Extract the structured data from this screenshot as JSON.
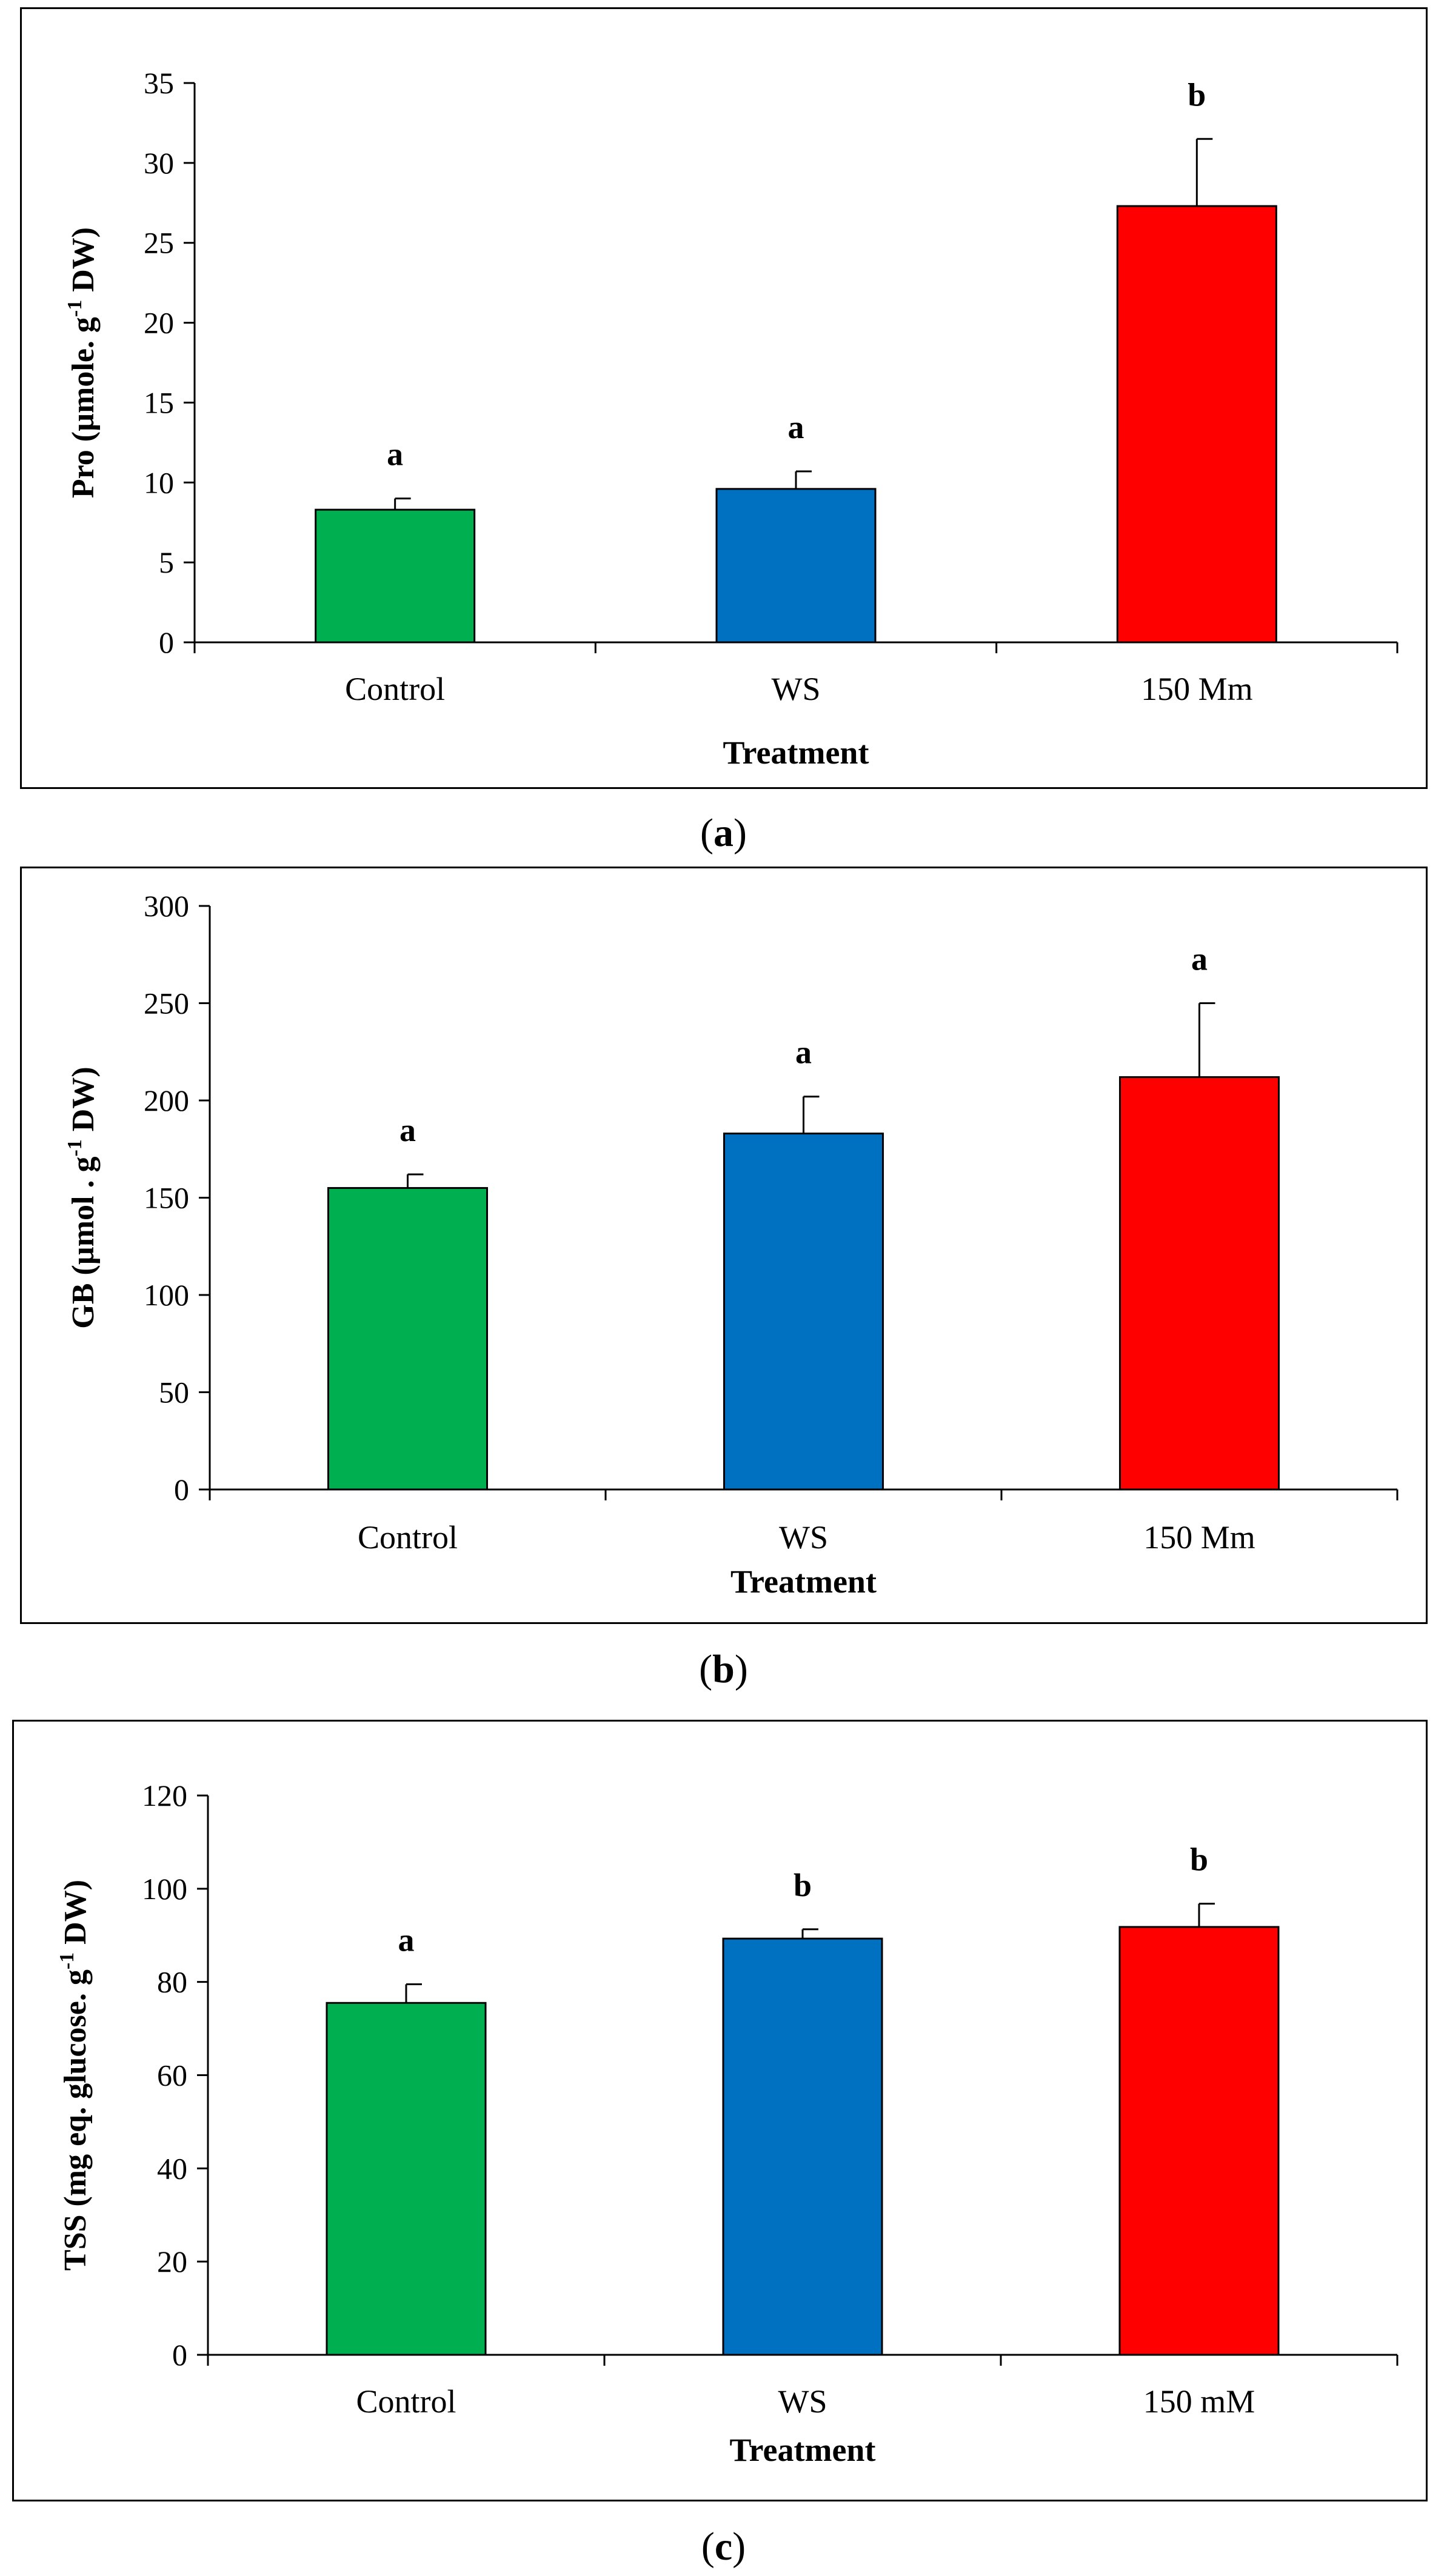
{
  "charts": [
    {
      "caption_letter": "a",
      "chart_data": {
        "type": "bar",
        "categories": [
          "Control",
          "WS",
          "150 Mm"
        ],
        "values": [
          8.3,
          9.6,
          27.3
        ],
        "errors": [
          0.7,
          1.1,
          4.2
        ],
        "significance": [
          "a",
          "a",
          "b"
        ],
        "colors": [
          "#00B050",
          "#0070C0",
          "#FF0000"
        ],
        "xlabel": "Treatment",
        "ylabel_main": "Pro (µmole. g",
        "ylabel_sup": "-1",
        "ylabel_tail": " DW)",
        "ylim": [
          0,
          35
        ],
        "yticks": [
          0,
          5,
          10,
          15,
          20,
          25,
          30,
          35
        ],
        "grid": false
      }
    },
    {
      "caption_letter": "b",
      "chart_data": {
        "type": "bar",
        "categories": [
          "Control",
          "WS",
          "150 Mm"
        ],
        "values": [
          155,
          183,
          212
        ],
        "errors": [
          7,
          19,
          38
        ],
        "significance": [
          "a",
          "a",
          "a"
        ],
        "colors": [
          "#00B050",
          "#0070C0",
          "#FF0000"
        ],
        "xlabel": "Treatment",
        "ylabel_main": "GB (µmol . g",
        "ylabel_sup": "-1",
        "ylabel_tail": " DW)",
        "ylim": [
          0,
          300
        ],
        "yticks": [
          0,
          50,
          100,
          150,
          200,
          250,
          300
        ],
        "grid": false
      }
    },
    {
      "caption_letter": "c",
      "chart_data": {
        "type": "bar",
        "categories": [
          "Control",
          "WS",
          "150 mM"
        ],
        "values": [
          75.5,
          89.3,
          91.8
        ],
        "errors": [
          4.0,
          2.0,
          5.0
        ],
        "significance": [
          "a",
          "b",
          "b"
        ],
        "colors": [
          "#00B050",
          "#0070C0",
          "#FF0000"
        ],
        "xlabel": "Treatment",
        "ylabel_main": "TSS (mg eq. glucose. g",
        "ylabel_sup": "-1",
        "ylabel_tail": " DW)",
        "ylim": [
          0,
          120
        ],
        "yticks": [
          0,
          20,
          40,
          60,
          80,
          100,
          120
        ],
        "grid": false
      }
    }
  ]
}
